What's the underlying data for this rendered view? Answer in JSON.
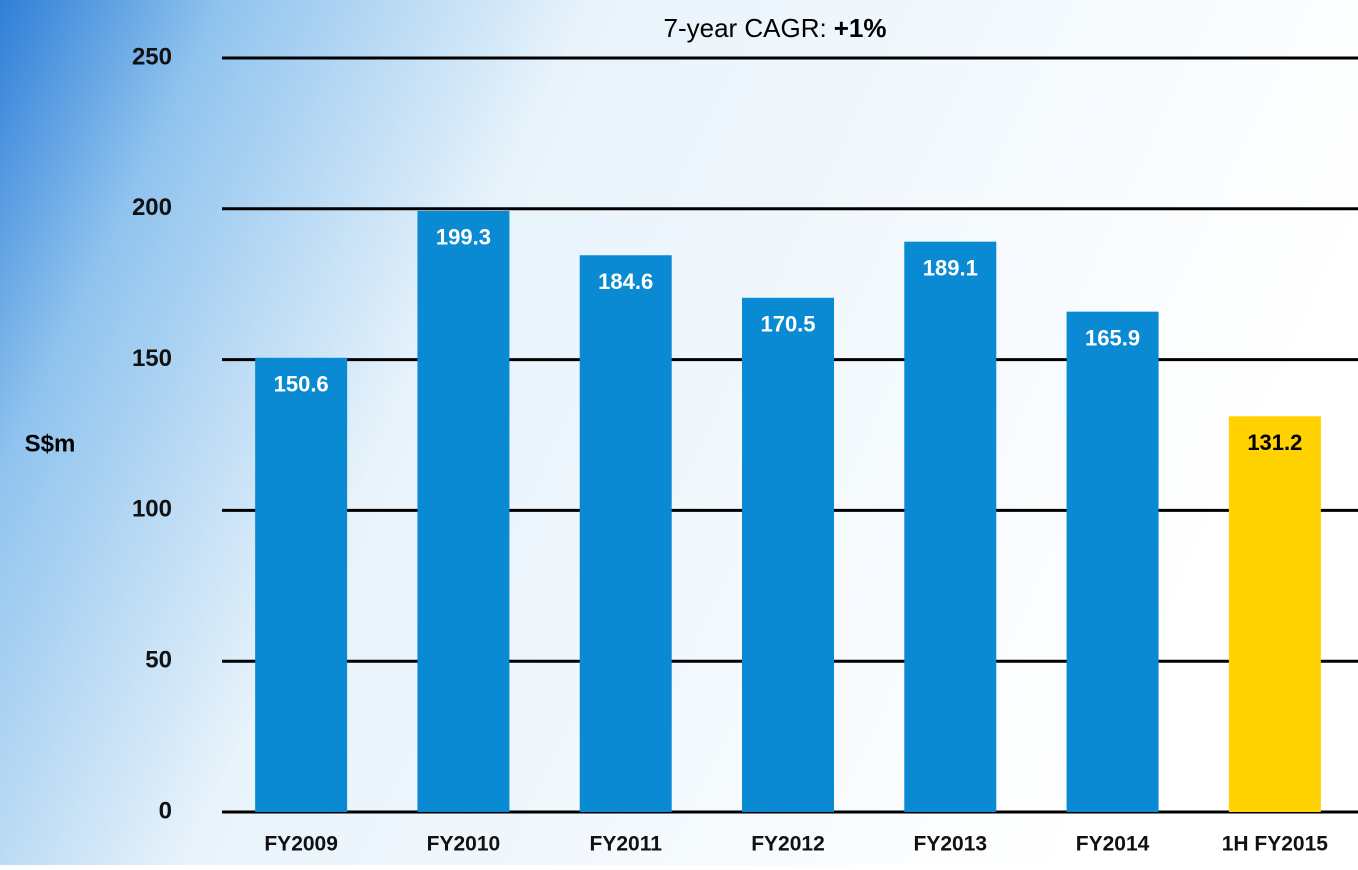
{
  "chart_data": {
    "type": "bar",
    "title": {
      "text": "7-year CAGR:",
      "emphasis": "+1%"
    },
    "y_label": "S$m",
    "categories": [
      "FY2009",
      "FY2010",
      "FY2011",
      "FY2012",
      "FY2013",
      "FY2014",
      "1H FY2015"
    ],
    "values": [
      150.6,
      199.3,
      184.6,
      170.5,
      189.1,
      165.9,
      131.2
    ],
    "colors": [
      "#0b8ad4",
      "#0b8ad4",
      "#0b8ad4",
      "#0b8ad4",
      "#0b8ad4",
      "#0b8ad4",
      "#ffd200"
    ],
    "label_colors": [
      "#ffffff",
      "#ffffff",
      "#ffffff",
      "#ffffff",
      "#ffffff",
      "#ffffff",
      "#000000"
    ],
    "ylim": [
      0,
      250
    ],
    "yticks": [
      0,
      50,
      100,
      150,
      200,
      250
    ],
    "grid": true
  }
}
